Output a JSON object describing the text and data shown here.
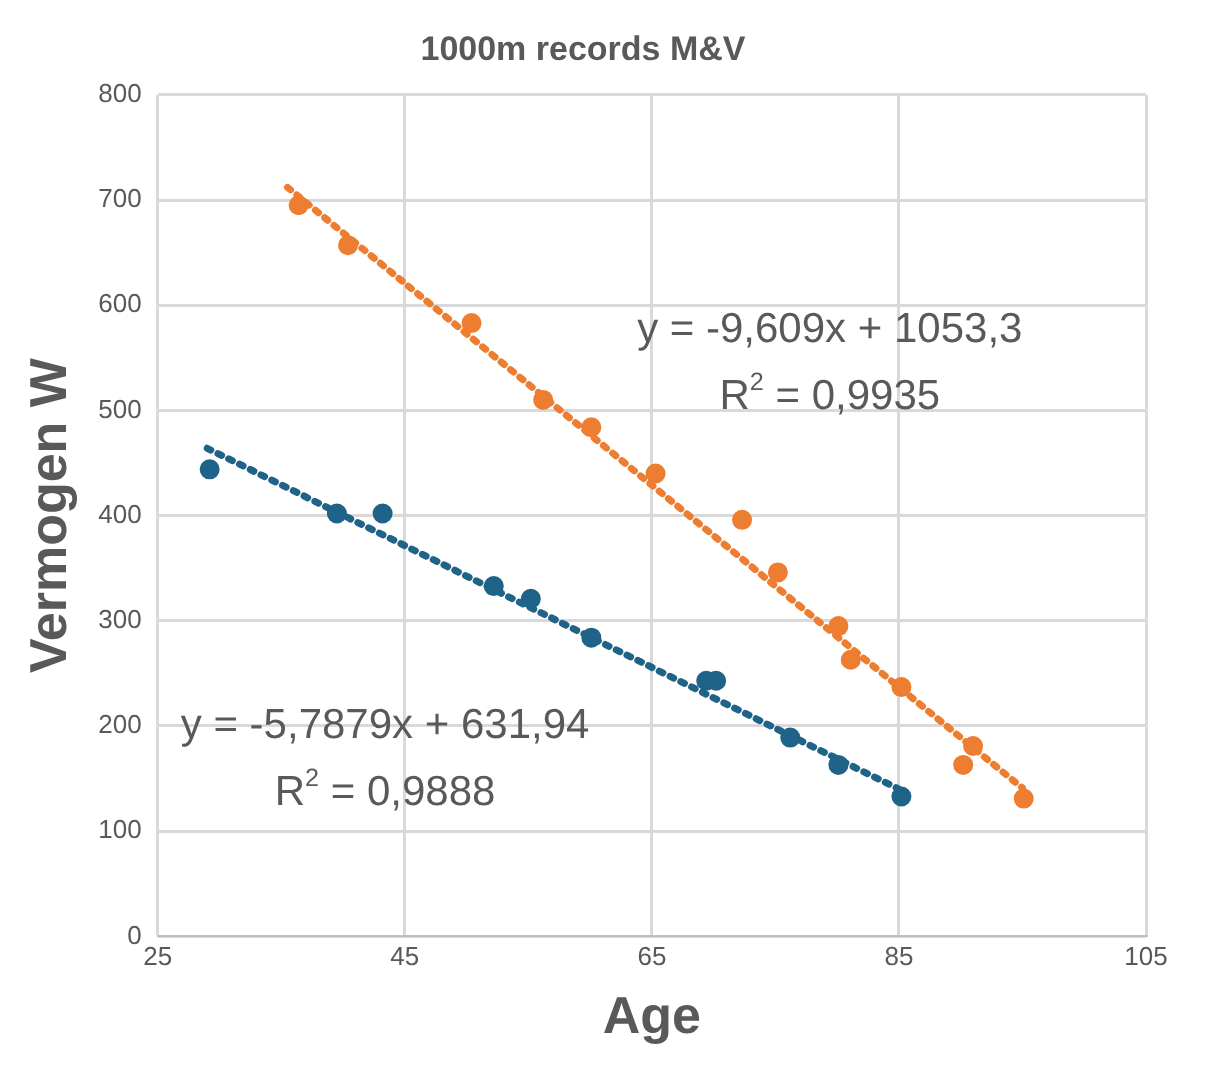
{
  "chart_data": {
    "type": "scatter",
    "title": "1000m records M&V",
    "xlabel": "Age",
    "ylabel": "Vermogen W",
    "xlim": [
      25,
      105
    ],
    "xticks": [
      25,
      45,
      65,
      85,
      105
    ],
    "ylim": [
      0,
      800
    ],
    "yticks": [
      0,
      100,
      200,
      300,
      400,
      500,
      600,
      700,
      800
    ],
    "grid": true,
    "legend": false,
    "marker": "circle",
    "series": [
      {
        "type": "scatter",
        "color": "#ed7d31",
        "x": [
          36.4,
          40.4,
          50.4,
          56.2,
          60.1,
          65.3,
          72.3,
          75.2,
          80.1,
          81.1,
          85.2,
          91.0,
          90.2,
          95.1
        ],
        "values": [
          695,
          657,
          583,
          510,
          484,
          440,
          396,
          346,
          295,
          263,
          237,
          181,
          163,
          131
        ]
      },
      {
        "type": "scatter",
        "color": "#1f6388",
        "x": [
          29.2,
          39.5,
          43.2,
          52.2,
          55.2,
          60.1,
          69.4,
          70.2,
          76.2,
          80.1,
          85.2
        ],
        "values": [
          444,
          402,
          402,
          333,
          321,
          284,
          243,
          243,
          189,
          163,
          133
        ]
      },
      {
        "type": "line",
        "color": "#ed7d31",
        "line_style": "dotted",
        "marker": "none",
        "x": [
          35.5,
          95
        ],
        "values": [
          712,
          141
        ]
      },
      {
        "type": "line",
        "color": "#1f6388",
        "line_style": "dotted",
        "marker": "none",
        "x": [
          29,
          85
        ],
        "values": [
          464,
          140
        ]
      }
    ],
    "annotations": [
      "y = -9,609x + 1053,3",
      "R$^{2}$ = 0,9935",
      "y = -5,7879x + 631,94",
      "R$^{2}$ = 0,9888"
    ]
  }
}
